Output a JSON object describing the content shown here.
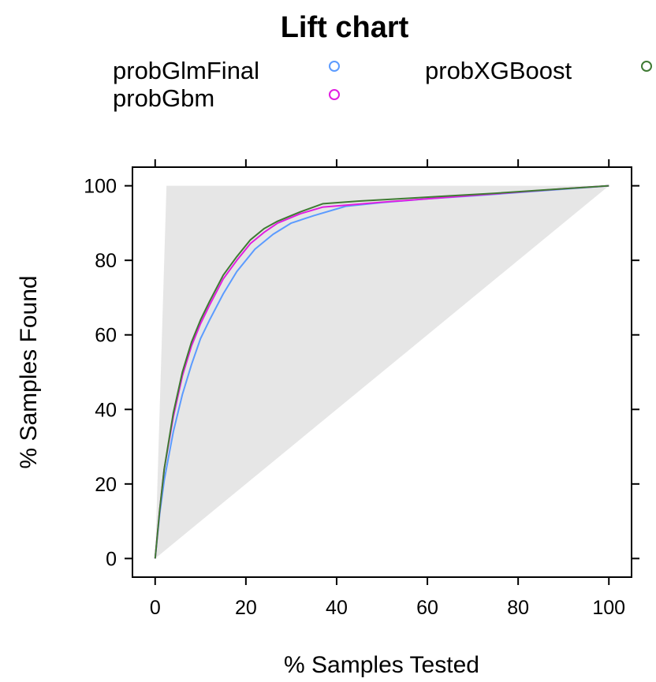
{
  "chart_data": {
    "type": "line",
    "title": "Lift chart",
    "xlabel": "% Samples Tested",
    "ylabel": "% Samples Found",
    "xlim": [
      -5,
      105
    ],
    "ylim": [
      -5,
      105
    ],
    "xticks": [
      0,
      20,
      40,
      60,
      80,
      100
    ],
    "yticks": [
      0,
      20,
      40,
      60,
      80,
      100
    ],
    "legend_position": "top",
    "ideal_region": {
      "color": "#e6e6e6",
      "points": [
        [
          0,
          0
        ],
        [
          2.5,
          100
        ],
        [
          100,
          100
        ],
        [
          0,
          0
        ]
      ]
    },
    "series": [
      {
        "name": "probGlmFinal",
        "color": "#5b9bff",
        "x": [
          0,
          1,
          2,
          4,
          6,
          8,
          10,
          12,
          15,
          18,
          22,
          26,
          30,
          35,
          42,
          50,
          60,
          70,
          80,
          90,
          100
        ],
        "y": [
          0,
          12,
          21,
          34,
          44,
          52,
          59,
          64,
          71,
          77,
          83,
          87,
          90,
          92,
          94.5,
          95.5,
          96.5,
          97.3,
          98.2,
          99.1,
          100
        ]
      },
      {
        "name": "probGbm",
        "color": "#e11de1",
        "x": [
          0,
          1,
          2,
          4,
          6,
          8,
          10,
          12,
          15,
          18,
          21,
          24,
          27,
          32,
          37,
          42,
          50,
          60,
          70,
          80,
          90,
          100
        ],
        "y": [
          0,
          13,
          24,
          38,
          49,
          57,
          63,
          68,
          75,
          80,
          84.5,
          87.5,
          90,
          92.5,
          94.3,
          94.8,
          95.6,
          96.5,
          97.4,
          98.3,
          99.2,
          100
        ]
      },
      {
        "name": "probXGBoost",
        "color": "#3f7a33",
        "x": [
          0,
          1,
          2,
          4,
          6,
          8,
          10,
          12,
          15,
          18,
          21,
          24,
          27,
          32,
          37,
          45,
          55,
          65,
          75,
          85,
          95,
          100
        ],
        "y": [
          0,
          13,
          24,
          39,
          50,
          58,
          64,
          69,
          76,
          81,
          85.5,
          88.5,
          90.5,
          93,
          95.2,
          95.9,
          96.6,
          97.3,
          98,
          98.8,
          99.6,
          100
        ]
      }
    ]
  }
}
